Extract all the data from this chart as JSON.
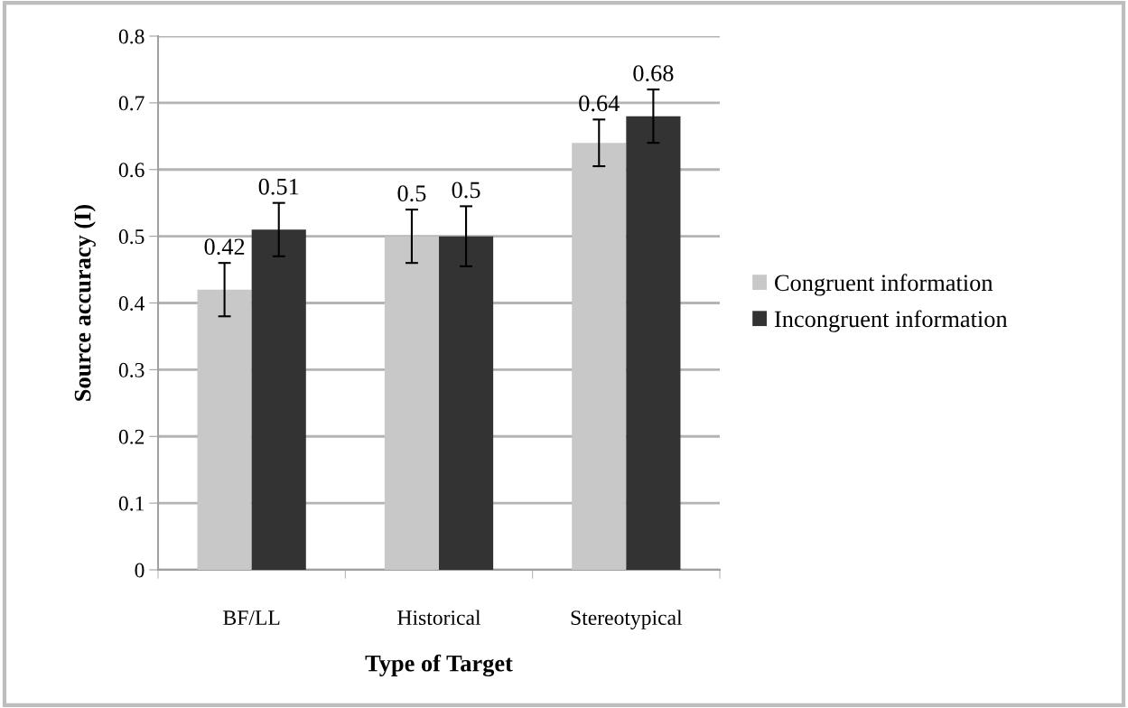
{
  "chart_data": {
    "type": "bar",
    "xlabel": "Type of Target",
    "ylabel": "Source accuracy (I)",
    "categories": [
      "BF/LL",
      "Historical",
      "Stereotypical"
    ],
    "series": [
      {
        "name": "Congruent information",
        "color": "#c8c8c8",
        "values": [
          0.42,
          0.5,
          0.64
        ],
        "errors": [
          0.04,
          0.04,
          0.035
        ]
      },
      {
        "name": "Incongruent information",
        "color": "#333333",
        "values": [
          0.51,
          0.5,
          0.68
        ],
        "errors": [
          0.04,
          0.045,
          0.04
        ]
      }
    ],
    "ylim": [
      0,
      0.8
    ],
    "yticks": [
      0,
      0.1,
      0.2,
      0.3,
      0.4,
      0.5,
      0.6,
      0.7,
      0.8
    ],
    "grid": "y",
    "legend": "right",
    "data_labels": true
  }
}
